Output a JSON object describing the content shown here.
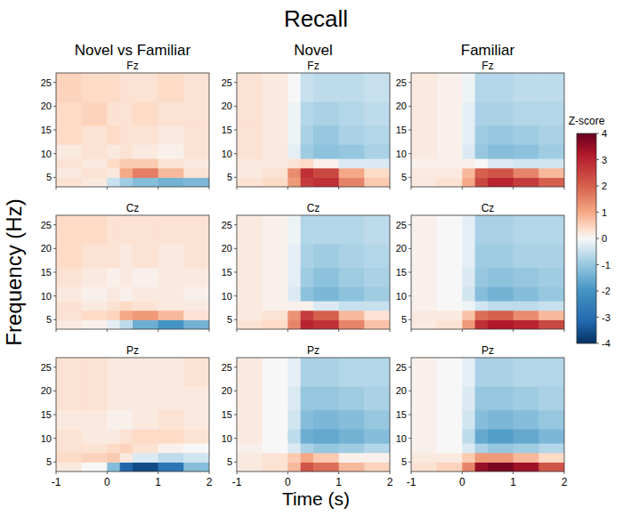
{
  "title": "Recall",
  "columns": [
    "Novel vs Familiar",
    "Novel",
    "Familiar"
  ],
  "xlabel": "Time (s)",
  "ylabel": "Frequency (Hz)",
  "colorbar": {
    "label": "Z-score",
    "range": [
      -4,
      4
    ],
    "ticks": [
      -4,
      -3,
      -2,
      -1,
      0,
      1,
      2,
      3,
      4
    ]
  },
  "chart_data": [
    {
      "type": "heatmap",
      "title": "Fz",
      "tick_labels": "y",
      "x_edges": [
        -1,
        -0.5,
        0,
        0.25,
        0.5,
        1,
        1.5,
        2
      ],
      "y_edges": [
        3,
        5,
        7,
        9,
        12,
        16,
        21,
        27
      ],
      "xlim": [
        -1,
        2
      ],
      "ylim": [
        3,
        27
      ],
      "xticks": [
        -1,
        0,
        1,
        2
      ],
      "yticks": [
        5,
        10,
        15,
        20,
        25
      ],
      "cells": [
        [
          0.3,
          0.2,
          -0.5,
          -0.9,
          -1.2,
          -1.4,
          -1.3
        ],
        [
          0.2,
          0.3,
          0.2,
          1.0,
          1.6,
          0.8,
          0.3
        ],
        [
          0.3,
          0.2,
          0.4,
          0.6,
          0.6,
          0.3,
          0.2
        ],
        [
          0.2,
          0.3,
          0.2,
          0.3,
          0.2,
          0.1,
          0.3
        ],
        [
          0.4,
          0.3,
          0.4,
          0.3,
          0.3,
          0.2,
          0.3
        ],
        [
          0.4,
          0.5,
          0.3,
          0.3,
          0.4,
          0.3,
          0.3
        ],
        [
          0.5,
          0.4,
          0.4,
          0.3,
          0.3,
          0.4,
          0.3
        ]
      ]
    },
    {
      "type": "heatmap",
      "title": "Fz",
      "tick_labels": "y",
      "x_edges": [
        -1,
        -0.5,
        0,
        0.25,
        0.5,
        1,
        1.5,
        2
      ],
      "y_edges": [
        3,
        5,
        7,
        9,
        12,
        16,
        21,
        27
      ],
      "xlim": [
        -1,
        2
      ],
      "ylim": [
        3,
        27
      ],
      "xticks": [
        -1,
        0,
        1,
        2
      ],
      "yticks": [
        5,
        10,
        15,
        20,
        25
      ],
      "cells": [
        [
          0.3,
          0.4,
          1.2,
          2.6,
          2.8,
          1.5,
          0.6
        ],
        [
          0.2,
          0.3,
          1.4,
          2.8,
          2.4,
          1.0,
          0.4
        ],
        [
          0.2,
          0.2,
          0.3,
          0.4,
          0.1,
          -0.3,
          -0.3
        ],
        [
          0.3,
          0.2,
          -0.2,
          -0.9,
          -1.1,
          -1.0,
          -0.8
        ],
        [
          0.3,
          0.2,
          -0.1,
          -0.8,
          -1.0,
          -0.8,
          -0.7
        ],
        [
          0.3,
          0.2,
          -0.1,
          -0.7,
          -0.8,
          -0.7,
          -0.6
        ],
        [
          0.3,
          0.2,
          0.0,
          -0.5,
          -0.6,
          -0.6,
          -0.5
        ]
      ]
    },
    {
      "type": "heatmap",
      "title": "Fz",
      "tick_labels": "y",
      "x_edges": [
        -1,
        -0.5,
        0,
        0.25,
        0.5,
        1,
        1.5,
        2
      ],
      "y_edges": [
        3,
        5,
        7,
        9,
        12,
        16,
        21,
        27
      ],
      "xlim": [
        -1,
        2
      ],
      "ylim": [
        3,
        27
      ],
      "xticks": [
        -1,
        0,
        1,
        2
      ],
      "yticks": [
        5,
        10,
        15,
        20,
        25
      ],
      "cells": [
        [
          0.2,
          0.3,
          1.0,
          2.4,
          3.0,
          2.6,
          2.0
        ],
        [
          0.2,
          0.2,
          0.8,
          2.0,
          2.2,
          1.5,
          0.8
        ],
        [
          0.1,
          0.1,
          0.1,
          0.0,
          -0.3,
          -0.4,
          -0.4
        ],
        [
          0.2,
          0.1,
          -0.3,
          -1.0,
          -1.2,
          -1.1,
          -0.9
        ],
        [
          0.2,
          0.1,
          -0.2,
          -0.9,
          -1.0,
          -0.9,
          -0.8
        ],
        [
          0.2,
          0.1,
          -0.2,
          -0.8,
          -0.8,
          -0.7,
          -0.7
        ],
        [
          0.2,
          0.1,
          -0.1,
          -0.7,
          -0.7,
          -0.6,
          -0.6
        ]
      ]
    },
    {
      "type": "heatmap",
      "title": "Cz",
      "tick_labels": "y",
      "x_edges": [
        -1,
        -0.5,
        0,
        0.25,
        0.5,
        1,
        1.5,
        2
      ],
      "y_edges": [
        3,
        5,
        7,
        9,
        12,
        16,
        21,
        27
      ],
      "xlim": [
        -1,
        2
      ],
      "ylim": [
        3,
        27
      ],
      "xticks": [
        -1,
        0,
        1,
        2
      ],
      "yticks": [
        5,
        10,
        15,
        20,
        25
      ],
      "cells": [
        [
          0.2,
          0.1,
          -0.2,
          -0.6,
          -1.5,
          -2.0,
          -1.4
        ],
        [
          0.3,
          0.4,
          0.5,
          1.0,
          1.2,
          0.8,
          0.3
        ],
        [
          0.3,
          0.2,
          0.3,
          0.4,
          0.3,
          0.2,
          0.2
        ],
        [
          0.2,
          0.1,
          0.2,
          0.1,
          0.2,
          0.2,
          0.1
        ],
        [
          0.3,
          0.2,
          0.1,
          0.2,
          0.1,
          0.2,
          0.2
        ],
        [
          0.4,
          0.3,
          0.3,
          0.2,
          0.3,
          0.2,
          0.3
        ],
        [
          0.4,
          0.4,
          0.3,
          0.3,
          0.3,
          0.3,
          0.3
        ]
      ]
    },
    {
      "type": "heatmap",
      "title": "Cz",
      "tick_labels": "y",
      "x_edges": [
        -1,
        -0.5,
        0,
        0.25,
        0.5,
        1,
        1.5,
        2
      ],
      "y_edges": [
        3,
        5,
        7,
        9,
        12,
        16,
        21,
        27
      ],
      "xlim": [
        -1,
        2
      ],
      "ylim": [
        3,
        27
      ],
      "xticks": [
        -1,
        0,
        1,
        2
      ],
      "yticks": [
        5,
        10,
        15,
        20,
        25
      ],
      "cells": [
        [
          0.3,
          0.4,
          1.5,
          3.0,
          2.8,
          1.5,
          0.7
        ],
        [
          0.2,
          0.3,
          1.3,
          2.6,
          2.0,
          0.8,
          0.3
        ],
        [
          0.2,
          0.1,
          0.1,
          0.1,
          -0.3,
          -0.5,
          -0.5
        ],
        [
          0.2,
          0.1,
          -0.3,
          -1.1,
          -1.3,
          -1.1,
          -0.9
        ],
        [
          0.2,
          0.1,
          -0.2,
          -0.9,
          -1.1,
          -0.9,
          -0.8
        ],
        [
          0.2,
          0.1,
          -0.2,
          -0.8,
          -0.9,
          -0.8,
          -0.7
        ],
        [
          0.2,
          0.1,
          -0.1,
          -0.7,
          -0.7,
          -0.7,
          -0.6
        ]
      ]
    },
    {
      "type": "heatmap",
      "title": "Cz",
      "tick_labels": "y",
      "x_edges": [
        -1,
        -0.5,
        0,
        0.25,
        0.5,
        1,
        1.5,
        2
      ],
      "y_edges": [
        3,
        5,
        7,
        9,
        12,
        16,
        21,
        27
      ],
      "xlim": [
        -1,
        2
      ],
      "ylim": [
        3,
        27
      ],
      "xticks": [
        -1,
        0,
        1,
        2
      ],
      "yticks": [
        5,
        10,
        15,
        20,
        25
      ],
      "cells": [
        [
          0.2,
          0.3,
          1.2,
          2.8,
          3.2,
          3.0,
          2.4
        ],
        [
          0.2,
          0.2,
          0.7,
          1.8,
          2.0,
          1.4,
          0.8
        ],
        [
          0.1,
          0.0,
          -0.1,
          -0.4,
          -0.6,
          -0.6,
          -0.5
        ],
        [
          0.1,
          0.0,
          -0.4,
          -1.2,
          -1.4,
          -1.2,
          -1.0
        ],
        [
          0.1,
          0.0,
          -0.3,
          -1.0,
          -1.1,
          -1.0,
          -0.9
        ],
        [
          0.1,
          0.0,
          -0.2,
          -0.9,
          -0.9,
          -0.8,
          -0.8
        ],
        [
          0.1,
          0.0,
          -0.2,
          -0.8,
          -0.8,
          -0.7,
          -0.7
        ]
      ]
    },
    {
      "type": "heatmap",
      "title": "Pz",
      "x_edges": [
        -1,
        -0.5,
        0,
        0.25,
        0.5,
        1,
        1.5,
        2
      ],
      "y_edges": [
        3,
        5,
        7,
        9,
        12,
        16,
        21,
        27
      ],
      "xlim": [
        -1,
        2
      ],
      "ylim": [
        3,
        27
      ],
      "xticks": [
        -1,
        0,
        1,
        2
      ],
      "yticks": [
        5,
        10,
        15,
        20,
        25
      ],
      "cells": [
        [
          0.2,
          0.0,
          -1.2,
          -3.2,
          -3.6,
          -2.8,
          -1.2
        ],
        [
          0.4,
          0.5,
          0.6,
          0.2,
          -0.3,
          -0.6,
          -0.4
        ],
        [
          0.3,
          0.3,
          0.4,
          0.5,
          0.3,
          0.1,
          0.0
        ],
        [
          0.3,
          0.2,
          0.2,
          0.3,
          0.4,
          0.4,
          0.3
        ],
        [
          0.2,
          0.2,
          0.1,
          0.1,
          0.2,
          0.3,
          0.2
        ],
        [
          0.3,
          0.3,
          0.2,
          0.2,
          0.2,
          0.2,
          0.2
        ],
        [
          0.3,
          0.3,
          0.2,
          0.2,
          0.2,
          0.2,
          0.3
        ]
      ]
    },
    {
      "type": "heatmap",
      "title": "Pz",
      "x_edges": [
        -1,
        -0.5,
        0,
        0.25,
        0.5,
        1,
        1.5,
        2
      ],
      "y_edges": [
        3,
        5,
        7,
        9,
        12,
        16,
        21,
        27
      ],
      "xlim": [
        -1,
        2
      ],
      "ylim": [
        3,
        27
      ],
      "xticks": [
        -1,
        0,
        1,
        2
      ],
      "yticks": [
        5,
        10,
        15,
        20,
        25
      ],
      "cells": [
        [
          0.2,
          0.3,
          0.8,
          2.2,
          1.8,
          0.8,
          0.5
        ],
        [
          0.2,
          0.3,
          0.6,
          1.0,
          0.6,
          0.1,
          0.1
        ],
        [
          0.1,
          0.0,
          -0.3,
          -0.8,
          -1.0,
          -0.9,
          -0.7
        ],
        [
          0.2,
          0.0,
          -0.6,
          -1.5,
          -1.6,
          -1.4,
          -1.2
        ],
        [
          0.2,
          0.0,
          -0.4,
          -1.2,
          -1.3,
          -1.2,
          -1.0
        ],
        [
          0.2,
          0.0,
          -0.3,
          -1.0,
          -1.0,
          -0.9,
          -0.8
        ],
        [
          0.2,
          0.0,
          -0.2,
          -0.8,
          -0.8,
          -0.7,
          -0.7
        ]
      ]
    },
    {
      "type": "heatmap",
      "title": "Pz",
      "x_edges": [
        -1,
        -0.5,
        0,
        0.25,
        0.5,
        1,
        1.5,
        2
      ],
      "y_edges": [
        3,
        5,
        7,
        9,
        12,
        16,
        21,
        27
      ],
      "xlim": [
        -1,
        2
      ],
      "ylim": [
        3,
        27
      ],
      "xticks": [
        -1,
        0,
        1,
        2
      ],
      "yticks": [
        5,
        10,
        15,
        20,
        25
      ],
      "cells": [
        [
          0.3,
          0.5,
          1.5,
          3.5,
          3.8,
          3.4,
          2.2
        ],
        [
          0.2,
          0.2,
          0.6,
          1.2,
          1.2,
          0.8,
          0.4
        ],
        [
          0.1,
          0.0,
          -0.3,
          -0.8,
          -1.0,
          -0.9,
          -0.7
        ],
        [
          0.1,
          0.0,
          -0.6,
          -1.6,
          -1.8,
          -1.6,
          -1.3
        ],
        [
          0.1,
          0.0,
          -0.4,
          -1.2,
          -1.3,
          -1.2,
          -1.0
        ],
        [
          0.1,
          0.0,
          -0.3,
          -1.0,
          -1.0,
          -0.9,
          -0.8
        ],
        [
          0.1,
          0.0,
          -0.2,
          -0.8,
          -0.8,
          -0.7,
          -0.7
        ]
      ]
    }
  ]
}
